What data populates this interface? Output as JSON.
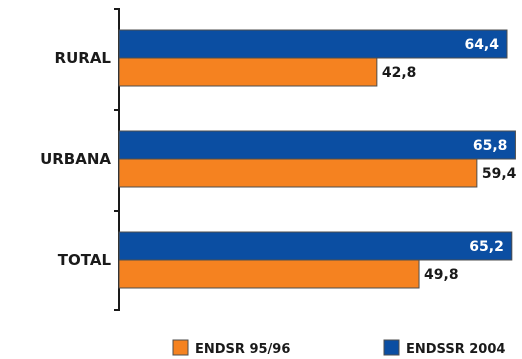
{
  "colors": {
    "endsr": "#f58220",
    "endssr": "#0b4ea2",
    "axis": "#1a1a1a"
  },
  "chart_data": {
    "type": "bar",
    "orientation": "horizontal",
    "categories": [
      "RURAL",
      "URBANA",
      "TOTAL"
    ],
    "series": [
      {
        "name": "ENDSSR 2004",
        "values": [
          64.4,
          65.8,
          65.2
        ],
        "labels": [
          "64,4",
          "65,8",
          "65,2"
        ]
      },
      {
        "name": "ENDSR 95/96",
        "values": [
          42.8,
          59.4,
          49.8
        ],
        "labels": [
          "42,8",
          "59,4",
          "49,8"
        ]
      }
    ],
    "xlim": [
      0,
      70
    ],
    "legend": [
      "ENDSR 95/96",
      "ENDSSR 2004"
    ],
    "legend_position": "bottom",
    "grid": false
  }
}
